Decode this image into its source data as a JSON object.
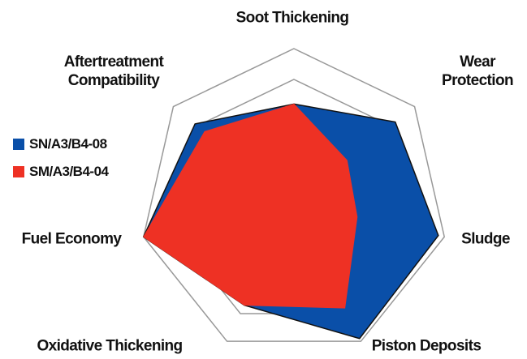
{
  "chart_data": {
    "type": "radar",
    "categories": [
      "Soot Thickening",
      "Wear Protection",
      "Sludge",
      "Piston Deposits",
      "Oxidative Thickening",
      "Fuel Economy",
      "Aftertreatment Compatibility"
    ],
    "rlim": [
      0,
      5
    ],
    "rticks": [
      1,
      2,
      3,
      4,
      5
    ],
    "grid": true,
    "series": [
      {
        "name": "SN/A3/B4-08",
        "color": "#0a4fa8",
        "values": [
          3.2,
          4.2,
          4.8,
          4.9,
          3.7,
          5,
          4.1
        ]
      },
      {
        "name": "SM/A3/B4-04",
        "color": "#ee3124",
        "values": [
          3.2,
          2.2,
          2.1,
          3.8,
          3.7,
          5,
          3.7
        ]
      }
    ]
  }
}
